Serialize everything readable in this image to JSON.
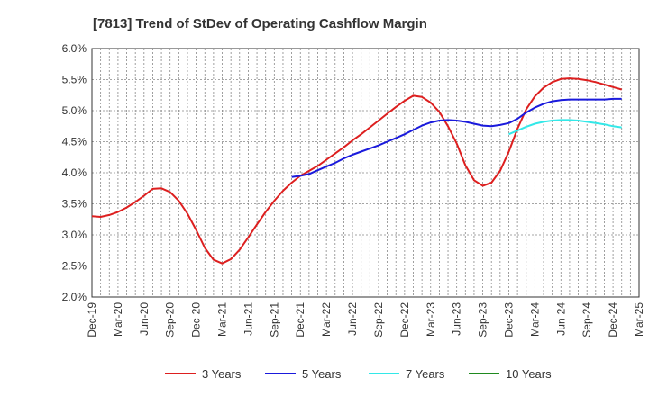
{
  "chart_data": {
    "type": "line",
    "title": "[7813]  Trend of StDev of Operating Cashflow Margin",
    "xlabel": "",
    "ylabel": "",
    "x_ticks": [
      "Dec-19",
      "Mar-20",
      "Jun-20",
      "Sep-20",
      "Dec-20",
      "Mar-21",
      "Jun-21",
      "Sep-21",
      "Dec-21",
      "Mar-22",
      "Jun-22",
      "Sep-22",
      "Dec-22",
      "Mar-23",
      "Jun-23",
      "Sep-23",
      "Dec-23",
      "Mar-24",
      "Jun-24",
      "Sep-24",
      "Dec-24",
      "Mar-25"
    ],
    "y_ticks": [
      "2.0%",
      "2.5%",
      "3.0%",
      "3.5%",
      "4.0%",
      "4.5%",
      "5.0%",
      "5.5%",
      "6.0%"
    ],
    "ylim": [
      2.0,
      6.0
    ],
    "grid": true,
    "legend_position": "bottom",
    "series": [
      {
        "name": "3 Years",
        "color": "#dd1f1f",
        "points": [
          [
            "Dec-19",
            3.3
          ],
          [
            "Jan-20",
            3.29
          ],
          [
            "Feb-20",
            3.32
          ],
          [
            "Mar-20",
            3.37
          ],
          [
            "Apr-20",
            3.44
          ],
          [
            "May-20",
            3.53
          ],
          [
            "Jun-20",
            3.63
          ],
          [
            "Jul-20",
            3.74
          ],
          [
            "Aug-20",
            3.75
          ],
          [
            "Sep-20",
            3.69
          ],
          [
            "Oct-20",
            3.55
          ],
          [
            "Nov-20",
            3.34
          ],
          [
            "Dec-20",
            3.08
          ],
          [
            "Jan-21",
            2.79
          ],
          [
            "Feb-21",
            2.6
          ],
          [
            "Mar-21",
            2.54
          ],
          [
            "Apr-21",
            2.61
          ],
          [
            "May-21",
            2.76
          ],
          [
            "Jun-21",
            2.96
          ],
          [
            "Jul-21",
            3.17
          ],
          [
            "Aug-21",
            3.37
          ],
          [
            "Sep-21",
            3.55
          ],
          [
            "Oct-21",
            3.71
          ],
          [
            "Nov-21",
            3.84
          ],
          [
            "Dec-21",
            3.95
          ],
          [
            "Jan-22",
            4.03
          ],
          [
            "Feb-22",
            4.11
          ],
          [
            "Mar-22",
            4.21
          ],
          [
            "Apr-22",
            4.31
          ],
          [
            "May-22",
            4.41
          ],
          [
            "Jun-22",
            4.52
          ],
          [
            "Jul-22",
            4.62
          ],
          [
            "Aug-22",
            4.73
          ],
          [
            "Sep-22",
            4.84
          ],
          [
            "Oct-22",
            4.95
          ],
          [
            "Nov-22",
            5.06
          ],
          [
            "Dec-22",
            5.16
          ],
          [
            "Jan-23",
            5.24
          ],
          [
            "Feb-23",
            5.22
          ],
          [
            "Mar-23",
            5.13
          ],
          [
            "Apr-23",
            4.98
          ],
          [
            "May-23",
            4.75
          ],
          [
            "Jun-23",
            4.47
          ],
          [
            "Jul-23",
            4.12
          ],
          [
            "Aug-23",
            3.88
          ],
          [
            "Sep-23",
            3.79
          ],
          [
            "Oct-23",
            3.84
          ],
          [
            "Nov-23",
            4.03
          ],
          [
            "Dec-23",
            4.34
          ],
          [
            "Jan-24",
            4.71
          ],
          [
            "Feb-24",
            5.02
          ],
          [
            "Mar-24",
            5.23
          ],
          [
            "Apr-24",
            5.37
          ],
          [
            "May-24",
            5.46
          ],
          [
            "Jun-24",
            5.51
          ],
          [
            "Jul-24",
            5.52
          ],
          [
            "Aug-24",
            5.51
          ],
          [
            "Sep-24",
            5.49
          ],
          [
            "Oct-24",
            5.46
          ],
          [
            "Nov-24",
            5.42
          ],
          [
            "Dec-24",
            5.38
          ],
          [
            "Jan-25",
            5.34
          ]
        ]
      },
      {
        "name": "5 Years",
        "color": "#1a1adc",
        "points": [
          [
            "Nov-21",
            3.93
          ],
          [
            "Dec-21",
            3.95
          ],
          [
            "Jan-22",
            3.98
          ],
          [
            "Feb-22",
            4.04
          ],
          [
            "Mar-22",
            4.1
          ],
          [
            "Apr-22",
            4.16
          ],
          [
            "May-22",
            4.23
          ],
          [
            "Jun-22",
            4.29
          ],
          [
            "Jul-22",
            4.34
          ],
          [
            "Aug-22",
            4.39
          ],
          [
            "Sep-22",
            4.44
          ],
          [
            "Oct-22",
            4.5
          ],
          [
            "Nov-22",
            4.56
          ],
          [
            "Dec-22",
            4.62
          ],
          [
            "Jan-23",
            4.69
          ],
          [
            "Feb-23",
            4.76
          ],
          [
            "Mar-23",
            4.81
          ],
          [
            "Apr-23",
            4.84
          ],
          [
            "May-23",
            4.85
          ],
          [
            "Jun-23",
            4.84
          ],
          [
            "Jul-23",
            4.82
          ],
          [
            "Aug-23",
            4.79
          ],
          [
            "Sep-23",
            4.76
          ],
          [
            "Oct-23",
            4.75
          ],
          [
            "Nov-23",
            4.77
          ],
          [
            "Dec-23",
            4.8
          ],
          [
            "Jan-24",
            4.87
          ],
          [
            "Feb-24",
            4.97
          ],
          [
            "Mar-24",
            5.05
          ],
          [
            "Apr-24",
            5.11
          ],
          [
            "May-24",
            5.15
          ],
          [
            "Jun-24",
            5.17
          ],
          [
            "Jul-24",
            5.18
          ],
          [
            "Aug-24",
            5.18
          ],
          [
            "Sep-24",
            5.18
          ],
          [
            "Oct-24",
            5.18
          ],
          [
            "Nov-24",
            5.18
          ],
          [
            "Dec-24",
            5.19
          ],
          [
            "Jan-25",
            5.19
          ]
        ]
      },
      {
        "name": "7 Years",
        "color": "#33e8e8",
        "points": [
          [
            "Dec-23",
            4.62
          ],
          [
            "Jan-24",
            4.68
          ],
          [
            "Feb-24",
            4.74
          ],
          [
            "Mar-24",
            4.79
          ],
          [
            "Apr-24",
            4.82
          ],
          [
            "May-24",
            4.84
          ],
          [
            "Jun-24",
            4.85
          ],
          [
            "Jul-24",
            4.85
          ],
          [
            "Aug-24",
            4.84
          ],
          [
            "Sep-24",
            4.82
          ],
          [
            "Oct-24",
            4.8
          ],
          [
            "Nov-24",
            4.78
          ],
          [
            "Dec-24",
            4.75
          ],
          [
            "Jan-25",
            4.73
          ]
        ]
      },
      {
        "name": "10 Years",
        "color": "#1f8a1f",
        "points": []
      }
    ]
  }
}
